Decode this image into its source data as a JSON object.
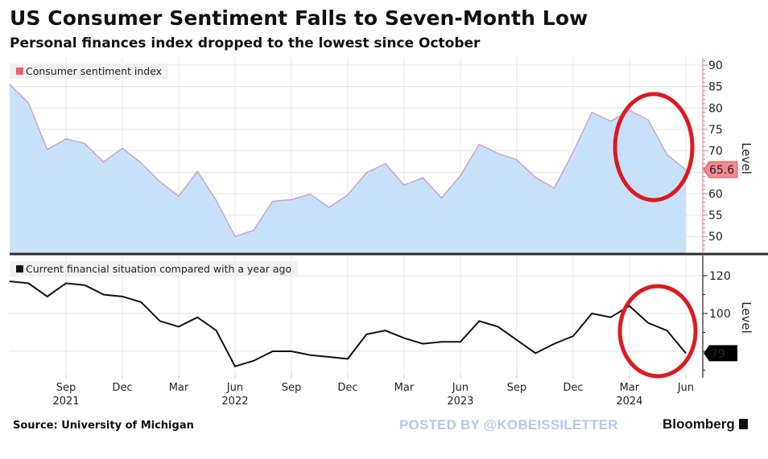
{
  "header": {
    "title": "US Consumer Sentiment Falls to Seven-Month Low",
    "subtitle": "Personal finances index dropped to the lowest since October"
  },
  "footer": {
    "source": "Source: University of Michigan",
    "watermark": "POSTED BY @KOBEISSILETTER",
    "brand": "Bloomberg"
  },
  "colors": {
    "area_fill": "#c8e1fb",
    "area_line": "#c9a5c0",
    "legend_top": "#e8636b",
    "last_value_top_bg": "#f38a8f",
    "line_bottom": "#111111",
    "annotation_circle": "#dd1a1f",
    "grid": "#e6e6e6",
    "axis_top": "#e07a85",
    "axis_bottom": "#222222"
  },
  "chart_data": [
    {
      "type": "area",
      "legend": "Consumer sentiment index",
      "ylabel": "Level",
      "y_ticks": [
        50,
        55,
        60,
        65,
        70,
        75,
        80,
        85,
        90
      ],
      "ylim": [
        45.5,
        91.5
      ],
      "last_value_label": "65.6",
      "x": [
        "Jun 2021",
        "Jul 2021",
        "Aug 2021",
        "Sep 2021",
        "Oct 2021",
        "Nov 2021",
        "Dec 2021",
        "Jan 2022",
        "Feb 2022",
        "Mar 2022",
        "Apr 2022",
        "May 2022",
        "Jun 2022",
        "Jul 2022",
        "Aug 2022",
        "Sep 2022",
        "Oct 2022",
        "Nov 2022",
        "Dec 2022",
        "Jan 2023",
        "Feb 2023",
        "Mar 2023",
        "Apr 2023",
        "May 2023",
        "Jun 2023",
        "Jul 2023",
        "Aug 2023",
        "Sep 2023",
        "Oct 2023",
        "Nov 2023",
        "Dec 2023",
        "Jan 2024",
        "Feb 2024",
        "Mar 2024",
        "Apr 2024",
        "May 2024",
        "Jun 2024"
      ],
      "values": [
        85.5,
        81.2,
        70.3,
        72.8,
        71.7,
        67.4,
        70.6,
        67.2,
        62.8,
        59.4,
        65.2,
        58.4,
        50.0,
        51.5,
        58.2,
        58.6,
        59.9,
        56.8,
        59.7,
        64.9,
        67.0,
        62.0,
        63.7,
        59.0,
        64.2,
        71.5,
        69.4,
        67.9,
        63.8,
        61.3,
        69.7,
        79.0,
        76.9,
        79.4,
        77.2,
        69.1,
        65.6
      ],
      "grid": true,
      "legend_position": "top-left",
      "annotation": "red ellipse around Mar-Jun 2024 decline"
    },
    {
      "type": "line",
      "legend": "Current financial situation compared with a year ago",
      "ylabel": "Level",
      "y_ticks": [
        100,
        120
      ],
      "ylim": [
        66,
        127
      ],
      "last_value_label": "79",
      "x": [
        "Jun 2021",
        "Jul 2021",
        "Aug 2021",
        "Sep 2021",
        "Oct 2021",
        "Nov 2021",
        "Dec 2021",
        "Jan 2022",
        "Feb 2022",
        "Mar 2022",
        "Apr 2022",
        "May 2022",
        "Jun 2022",
        "Jul 2022",
        "Aug 2022",
        "Sep 2022",
        "Oct 2022",
        "Nov 2022",
        "Dec 2022",
        "Jan 2023",
        "Feb 2023",
        "Mar 2023",
        "Apr 2023",
        "May 2023",
        "Jun 2023",
        "Jul 2023",
        "Aug 2023",
        "Sep 2023",
        "Oct 2023",
        "Nov 2023",
        "Dec 2023",
        "Jan 2024",
        "Feb 2024",
        "Mar 2024",
        "Apr 2024",
        "May 2024",
        "Jun 2024"
      ],
      "values": [
        117,
        116,
        109,
        116,
        115,
        110,
        109,
        106,
        96,
        93,
        98,
        91,
        72,
        75,
        80,
        80,
        78,
        77,
        76,
        89,
        91,
        87,
        84,
        85,
        85,
        96,
        93,
        86,
        79,
        84,
        88,
        100,
        98,
        104,
        95,
        91,
        79
      ],
      "grid": true,
      "legend_position": "top-left",
      "annotation": "red ellipse around Mar-Jun 2024 decline"
    }
  ],
  "x_axis": {
    "ticks": [
      {
        "month": "Sep",
        "year": "2021",
        "index": 3
      },
      {
        "month": "Dec",
        "year": "",
        "index": 6
      },
      {
        "month": "Mar",
        "year": "",
        "index": 9
      },
      {
        "month": "Jun",
        "year": "2022",
        "index": 12
      },
      {
        "month": "Sep",
        "year": "",
        "index": 15
      },
      {
        "month": "Dec",
        "year": "",
        "index": 18
      },
      {
        "month": "Mar",
        "year": "",
        "index": 21
      },
      {
        "month": "Jun",
        "year": "2023",
        "index": 24
      },
      {
        "month": "Sep",
        "year": "",
        "index": 27
      },
      {
        "month": "Dec",
        "year": "",
        "index": 30
      },
      {
        "month": "Mar",
        "year": "2024",
        "index": 33
      },
      {
        "month": "Jun",
        "year": "",
        "index": 36
      }
    ]
  }
}
